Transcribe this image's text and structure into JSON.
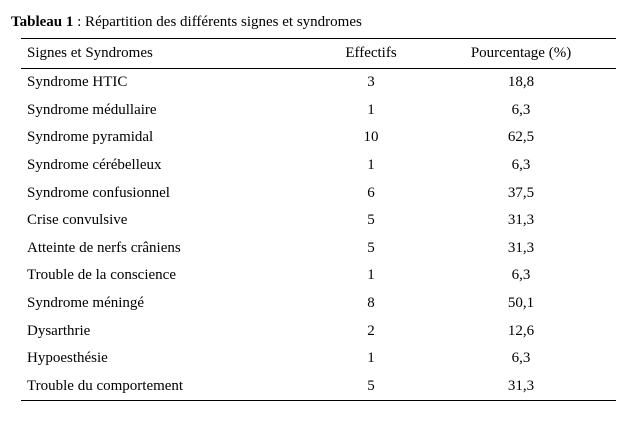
{
  "caption": {
    "label": "Tableau 1",
    "text": " : Répartition des différents signes et syndromes"
  },
  "table": {
    "headers": [
      "Signes et Syndromes",
      "Effectifs",
      "Pourcentage (%)"
    ],
    "rows": [
      [
        "Syndrome HTIC",
        "3",
        "18,8"
      ],
      [
        "Syndrome médullaire",
        "1",
        "6,3"
      ],
      [
        "Syndrome pyramidal",
        "10",
        "62,5"
      ],
      [
        "Syndrome cérébelleux",
        "1",
        "6,3"
      ],
      [
        "Syndrome confusionnel",
        "6",
        "37,5"
      ],
      [
        "Crise convulsive",
        "5",
        "31,3"
      ],
      [
        "Atteinte de nerfs crâniens",
        "5",
        "31,3"
      ],
      [
        "Trouble de la conscience",
        "1",
        "6,3"
      ],
      [
        "Syndrome méningé",
        "8",
        "50,1"
      ],
      [
        "Dysarthrie",
        "2",
        "12,6"
      ],
      [
        "Hypoesthésie",
        "1",
        "6,3"
      ],
      [
        "Trouble du comportement",
        "5",
        "31,3"
      ]
    ]
  }
}
